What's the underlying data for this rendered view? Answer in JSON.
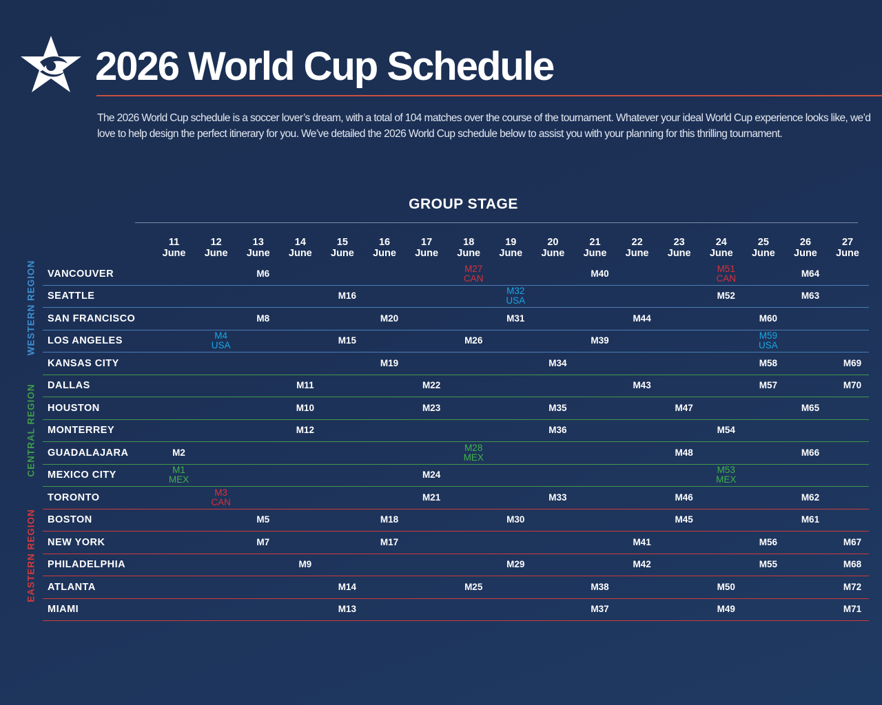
{
  "header": {
    "title": "2026 World Cup Schedule",
    "intro": "The 2026 World Cup schedule is a soccer lover’s dream, with a total of 104 matches over the course of the tournament. Whatever your ideal World Cup experience looks like, we’d love to help design the perfect itinerary for you. We’ve detailed the 2026 World Cup schedule below to assist you with your planning for this thrilling tournament."
  },
  "section_title": "GROUP STAGE",
  "dates": [
    {
      "day": "11",
      "month": "June"
    },
    {
      "day": "12",
      "month": "June"
    },
    {
      "day": "13",
      "month": "June"
    },
    {
      "day": "14",
      "month": "June"
    },
    {
      "day": "15",
      "month": "June"
    },
    {
      "day": "16",
      "month": "June"
    },
    {
      "day": "17",
      "month": "June"
    },
    {
      "day": "18",
      "month": "June"
    },
    {
      "day": "19",
      "month": "June"
    },
    {
      "day": "20",
      "month": "June"
    },
    {
      "day": "21",
      "month": "June"
    },
    {
      "day": "22",
      "month": "June"
    },
    {
      "day": "23",
      "month": "June"
    },
    {
      "day": "24",
      "month": "June"
    },
    {
      "day": "25",
      "month": "June"
    },
    {
      "day": "26",
      "month": "June"
    },
    {
      "day": "27",
      "month": "June"
    }
  ],
  "regions": [
    {
      "label": "WESTERN REGION",
      "color": "#3d8fd0"
    },
    {
      "label": "CENTRAL REGION",
      "color": "#3f9a4a"
    },
    {
      "label": "EASTERN REGION",
      "color": "#cf3b3b"
    }
  ],
  "host_colors": {
    "CAN": "#d8303a",
    "USA": "#17a7e6",
    "MEX": "#3fb44a"
  },
  "rows": [
    {
      "city": "VANCOUVER",
      "region": "western",
      "matches": [
        "",
        "",
        "M6",
        "",
        "",
        "",
        "",
        "M27|CAN",
        "",
        "",
        "M40",
        "",
        "",
        "M51|CAN",
        "",
        "M64",
        ""
      ]
    },
    {
      "city": "SEATTLE",
      "region": "western",
      "matches": [
        "",
        "",
        "",
        "",
        "M16",
        "",
        "",
        "",
        "M32|USA",
        "",
        "",
        "",
        "",
        "M52",
        "",
        "M63",
        ""
      ]
    },
    {
      "city": "SAN FRANCISCO",
      "region": "western",
      "matches": [
        "",
        "",
        "M8",
        "",
        "",
        "M20",
        "",
        "",
        "M31",
        "",
        "",
        "M44",
        "",
        "",
        "M60",
        "",
        ""
      ]
    },
    {
      "city": "LOS ANGELES",
      "region": "western",
      "matches": [
        "",
        "M4|USA",
        "",
        "",
        "M15",
        "",
        "",
        "M26",
        "",
        "",
        "M39",
        "",
        "",
        "",
        "M59|USA",
        "",
        ""
      ]
    },
    {
      "city": "KANSAS CITY",
      "region": "central",
      "matches": [
        "",
        "",
        "",
        "",
        "",
        "M19",
        "",
        "",
        "",
        "M34",
        "",
        "",
        "",
        "",
        "M58",
        "",
        "M69"
      ]
    },
    {
      "city": "DALLAS",
      "region": "central",
      "matches": [
        "",
        "",
        "",
        "M11",
        "",
        "",
        "M22",
        "",
        "",
        "",
        "",
        "M43",
        "",
        "",
        "M57",
        "",
        "M70"
      ]
    },
    {
      "city": "HOUSTON",
      "region": "central",
      "matches": [
        "",
        "",
        "",
        "M10",
        "",
        "",
        "M23",
        "",
        "",
        "M35",
        "",
        "",
        "M47",
        "",
        "",
        "M65",
        ""
      ]
    },
    {
      "city": "MONTERREY",
      "region": "central",
      "matches": [
        "",
        "",
        "",
        "M12",
        "",
        "",
        "",
        "",
        "",
        "M36",
        "",
        "",
        "",
        "M54",
        "",
        "",
        ""
      ]
    },
    {
      "city": "GUADALAJARA",
      "region": "central",
      "matches": [
        "M2",
        "",
        "",
        "",
        "",
        "",
        "",
        "M28|MEX",
        "",
        "",
        "",
        "",
        "M48",
        "",
        "",
        "M66",
        ""
      ]
    },
    {
      "city": "MEXICO CITY",
      "region": "central",
      "matches": [
        "M1|MEX",
        "",
        "",
        "",
        "",
        "",
        "M24",
        "",
        "",
        "",
        "",
        "",
        "",
        "M53|MEX",
        "",
        "",
        ""
      ]
    },
    {
      "city": "TORONTO",
      "region": "eastern",
      "matches": [
        "",
        "M3|CAN",
        "",
        "",
        "",
        "",
        "M21",
        "",
        "",
        "M33",
        "",
        "",
        "M46",
        "",
        "",
        "M62",
        ""
      ]
    },
    {
      "city": "BOSTON",
      "region": "eastern",
      "matches": [
        "",
        "",
        "M5",
        "",
        "",
        "M18",
        "",
        "",
        "M30",
        "",
        "",
        "",
        "M45",
        "",
        "",
        "M61",
        ""
      ]
    },
    {
      "city": "NEW YORK",
      "region": "eastern",
      "matches": [
        "",
        "",
        "M7",
        "",
        "",
        "M17",
        "",
        "",
        "",
        "",
        "",
        "M41",
        "",
        "",
        "M56",
        "",
        "M67"
      ]
    },
    {
      "city": "PHILADELPHIA",
      "region": "eastern",
      "matches": [
        "",
        "",
        "",
        "M9",
        "",
        "",
        "",
        "",
        "M29",
        "",
        "",
        "M42",
        "",
        "",
        "M55",
        "",
        "M68"
      ]
    },
    {
      "city": "ATLANTA",
      "region": "eastern",
      "matches": [
        "",
        "",
        "",
        "",
        "M14",
        "",
        "",
        "M25",
        "",
        "",
        "M38",
        "",
        "",
        "M50",
        "",
        "",
        "M72"
      ]
    },
    {
      "city": "MIAMI",
      "region": "eastern",
      "matches": [
        "",
        "",
        "",
        "",
        "M13",
        "",
        "",
        "",
        "",
        "",
        "M37",
        "",
        "",
        "M49",
        "",
        "",
        "M71"
      ]
    }
  ]
}
